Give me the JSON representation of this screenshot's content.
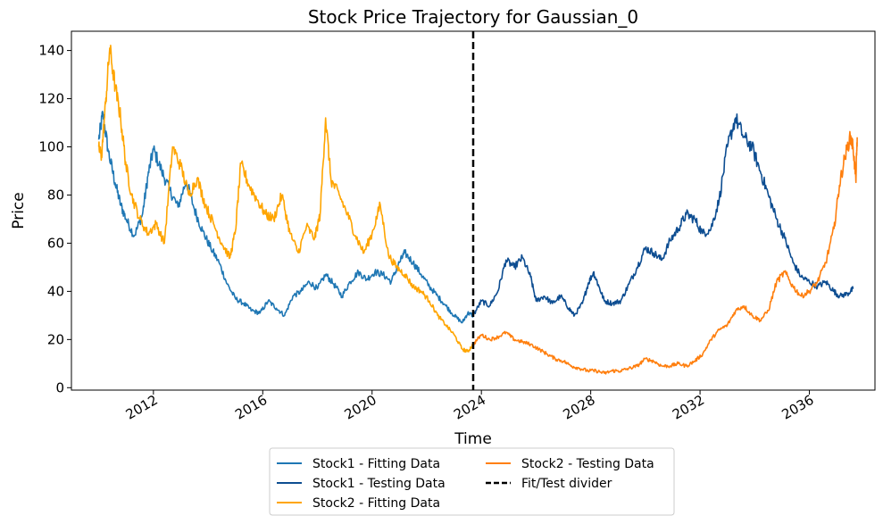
{
  "chart_data": {
    "type": "line",
    "title": "Stock Price Trajectory for Gaussian_0",
    "xlabel": "Time",
    "ylabel": "Price",
    "xlim": [
      2009.0,
      2038.4
    ],
    "ylim": [
      -1,
      148
    ],
    "x_ticks": [
      2012,
      2016,
      2020,
      2024,
      2028,
      2032,
      2036
    ],
    "x_tick_labels": [
      "2012",
      "2016",
      "2020",
      "2024",
      "2028",
      "2032",
      "2036"
    ],
    "y_ticks": [
      0,
      20,
      40,
      60,
      80,
      100,
      120,
      140
    ],
    "y_tick_labels": [
      "0",
      "20",
      "40",
      "60",
      "80",
      "100",
      "120",
      "140"
    ],
    "grid": false,
    "legend_placement": "bottom-center (below axes)",
    "divider": {
      "x": 2023.7,
      "label": "Fit/Test divider",
      "color": "#000000",
      "style": "dashed"
    },
    "series": [
      {
        "name": "Stock1 - Fitting Data",
        "color": "#1f77b4",
        "points": [
          [
            2010.0,
            103
          ],
          [
            2010.15,
            114
          ],
          [
            2010.35,
            98
          ],
          [
            2010.6,
            85
          ],
          [
            2010.8,
            76
          ],
          [
            2011.0,
            70
          ],
          [
            2011.3,
            63
          ],
          [
            2011.6,
            72
          ],
          [
            2011.8,
            88
          ],
          [
            2012.0,
            99
          ],
          [
            2012.3,
            90
          ],
          [
            2012.6,
            82
          ],
          [
            2012.9,
            75
          ],
          [
            2013.2,
            86
          ],
          [
            2013.5,
            74
          ],
          [
            2013.8,
            65
          ],
          [
            2014.1,
            58
          ],
          [
            2014.4,
            52
          ],
          [
            2014.7,
            43
          ],
          [
            2015.0,
            37
          ],
          [
            2015.3,
            35
          ],
          [
            2015.6,
            32
          ],
          [
            2015.9,
            31
          ],
          [
            2016.2,
            36
          ],
          [
            2016.5,
            33
          ],
          [
            2016.8,
            30
          ],
          [
            2017.1,
            38
          ],
          [
            2017.4,
            40
          ],
          [
            2017.7,
            44
          ],
          [
            2018.0,
            41
          ],
          [
            2018.3,
            47
          ],
          [
            2018.6,
            43
          ],
          [
            2018.9,
            38
          ],
          [
            2019.2,
            44
          ],
          [
            2019.5,
            48
          ],
          [
            2019.8,
            45
          ],
          [
            2020.1,
            48
          ],
          [
            2020.4,
            47
          ],
          [
            2020.7,
            44
          ],
          [
            2021.0,
            52
          ],
          [
            2021.2,
            56
          ],
          [
            2021.5,
            52
          ],
          [
            2021.8,
            47
          ],
          [
            2022.1,
            42
          ],
          [
            2022.4,
            38
          ],
          [
            2022.7,
            34
          ],
          [
            2023.0,
            30
          ],
          [
            2023.3,
            27
          ],
          [
            2023.5,
            31
          ],
          [
            2023.7,
            30
          ]
        ]
      },
      {
        "name": "Stock1 - Testing Data",
        "color": "#0d4d91",
        "points": [
          [
            2023.7,
            30
          ],
          [
            2024.0,
            36
          ],
          [
            2024.3,
            34
          ],
          [
            2024.6,
            40
          ],
          [
            2024.9,
            53
          ],
          [
            2025.2,
            50
          ],
          [
            2025.5,
            54
          ],
          [
            2025.8,
            46
          ],
          [
            2026.0,
            36
          ],
          [
            2026.3,
            38
          ],
          [
            2026.6,
            35
          ],
          [
            2026.9,
            38
          ],
          [
            2027.2,
            33
          ],
          [
            2027.4,
            30
          ],
          [
            2027.7,
            35
          ],
          [
            2027.9,
            43
          ],
          [
            2028.1,
            48
          ],
          [
            2028.3,
            42
          ],
          [
            2028.5,
            36
          ],
          [
            2028.8,
            35
          ],
          [
            2029.1,
            36
          ],
          [
            2029.4,
            43
          ],
          [
            2029.7,
            50
          ],
          [
            2030.0,
            58
          ],
          [
            2030.3,
            56
          ],
          [
            2030.6,
            53
          ],
          [
            2030.9,
            61
          ],
          [
            2031.2,
            66
          ],
          [
            2031.5,
            72
          ],
          [
            2031.8,
            70
          ],
          [
            2032.1,
            64
          ],
          [
            2032.4,
            66
          ],
          [
            2032.7,
            78
          ],
          [
            2033.0,
            100
          ],
          [
            2033.3,
            112
          ],
          [
            2033.6,
            104
          ],
          [
            2033.9,
            100
          ],
          [
            2034.2,
            90
          ],
          [
            2034.5,
            80
          ],
          [
            2034.8,
            70
          ],
          [
            2035.1,
            62
          ],
          [
            2035.4,
            52
          ],
          [
            2035.7,
            46
          ],
          [
            2036.0,
            44
          ],
          [
            2036.3,
            42
          ],
          [
            2036.6,
            44
          ],
          [
            2036.9,
            40
          ],
          [
            2037.1,
            38
          ],
          [
            2037.4,
            39
          ],
          [
            2037.6,
            41
          ]
        ]
      },
      {
        "name": "Stock2 - Fitting Data",
        "color": "#ffa500",
        "points": [
          [
            2010.0,
            100
          ],
          [
            2010.1,
            96
          ],
          [
            2010.25,
            118
          ],
          [
            2010.4,
            141
          ],
          [
            2010.6,
            125
          ],
          [
            2010.8,
            112
          ],
          [
            2011.0,
            92
          ],
          [
            2011.2,
            80
          ],
          [
            2011.5,
            70
          ],
          [
            2011.8,
            64
          ],
          [
            2012.1,
            68
          ],
          [
            2012.4,
            60
          ],
          [
            2012.7,
            100
          ],
          [
            2013.0,
            92
          ],
          [
            2013.3,
            80
          ],
          [
            2013.6,
            87
          ],
          [
            2013.9,
            76
          ],
          [
            2014.2,
            68
          ],
          [
            2014.5,
            60
          ],
          [
            2014.8,
            54
          ],
          [
            2015.0,
            65
          ],
          [
            2015.2,
            93
          ],
          [
            2015.5,
            84
          ],
          [
            2015.8,
            78
          ],
          [
            2016.1,
            72
          ],
          [
            2016.4,
            70
          ],
          [
            2016.7,
            80
          ],
          [
            2017.0,
            64
          ],
          [
            2017.3,
            56
          ],
          [
            2017.6,
            67
          ],
          [
            2017.9,
            62
          ],
          [
            2018.1,
            72
          ],
          [
            2018.3,
            112
          ],
          [
            2018.5,
            86
          ],
          [
            2018.8,
            80
          ],
          [
            2019.1,
            72
          ],
          [
            2019.4,
            63
          ],
          [
            2019.7,
            56
          ],
          [
            2020.0,
            64
          ],
          [
            2020.3,
            76
          ],
          [
            2020.6,
            55
          ],
          [
            2020.9,
            50
          ],
          [
            2021.2,
            47
          ],
          [
            2021.5,
            42
          ],
          [
            2021.8,
            40
          ],
          [
            2022.1,
            36
          ],
          [
            2022.4,
            30
          ],
          [
            2022.7,
            26
          ],
          [
            2023.0,
            22
          ],
          [
            2023.3,
            16
          ],
          [
            2023.5,
            15
          ],
          [
            2023.7,
            18
          ]
        ]
      },
      {
        "name": "Stock2 - Testing Data",
        "color": "#ff7f0e",
        "points": [
          [
            2023.7,
            18
          ],
          [
            2024.0,
            22
          ],
          [
            2024.3,
            20
          ],
          [
            2024.6,
            21
          ],
          [
            2024.9,
            23
          ],
          [
            2025.2,
            20
          ],
          [
            2025.5,
            19
          ],
          [
            2025.8,
            18
          ],
          [
            2026.1,
            16
          ],
          [
            2026.4,
            14
          ],
          [
            2026.7,
            12
          ],
          [
            2027.0,
            11
          ],
          [
            2027.3,
            9
          ],
          [
            2027.6,
            8
          ],
          [
            2027.9,
            7
          ],
          [
            2028.2,
            7
          ],
          [
            2028.5,
            6
          ],
          [
            2028.8,
            7
          ],
          [
            2029.1,
            7
          ],
          [
            2029.4,
            8
          ],
          [
            2029.7,
            9
          ],
          [
            2030.0,
            12
          ],
          [
            2030.3,
            11
          ],
          [
            2030.6,
            9
          ],
          [
            2030.9,
            9
          ],
          [
            2031.2,
            10
          ],
          [
            2031.5,
            9
          ],
          [
            2031.8,
            11
          ],
          [
            2032.1,
            14
          ],
          [
            2032.4,
            20
          ],
          [
            2032.7,
            24
          ],
          [
            2033.0,
            26
          ],
          [
            2033.3,
            32
          ],
          [
            2033.6,
            34
          ],
          [
            2033.9,
            30
          ],
          [
            2034.2,
            28
          ],
          [
            2034.5,
            32
          ],
          [
            2034.8,
            44
          ],
          [
            2035.1,
            48
          ],
          [
            2035.4,
            42
          ],
          [
            2035.7,
            38
          ],
          [
            2036.0,
            40
          ],
          [
            2036.3,
            44
          ],
          [
            2036.6,
            52
          ],
          [
            2036.9,
            66
          ],
          [
            2037.1,
            84
          ],
          [
            2037.3,
            96
          ],
          [
            2037.5,
            104
          ],
          [
            2037.6,
            100
          ],
          [
            2037.7,
            86
          ],
          [
            2037.75,
            104
          ]
        ]
      }
    ]
  }
}
